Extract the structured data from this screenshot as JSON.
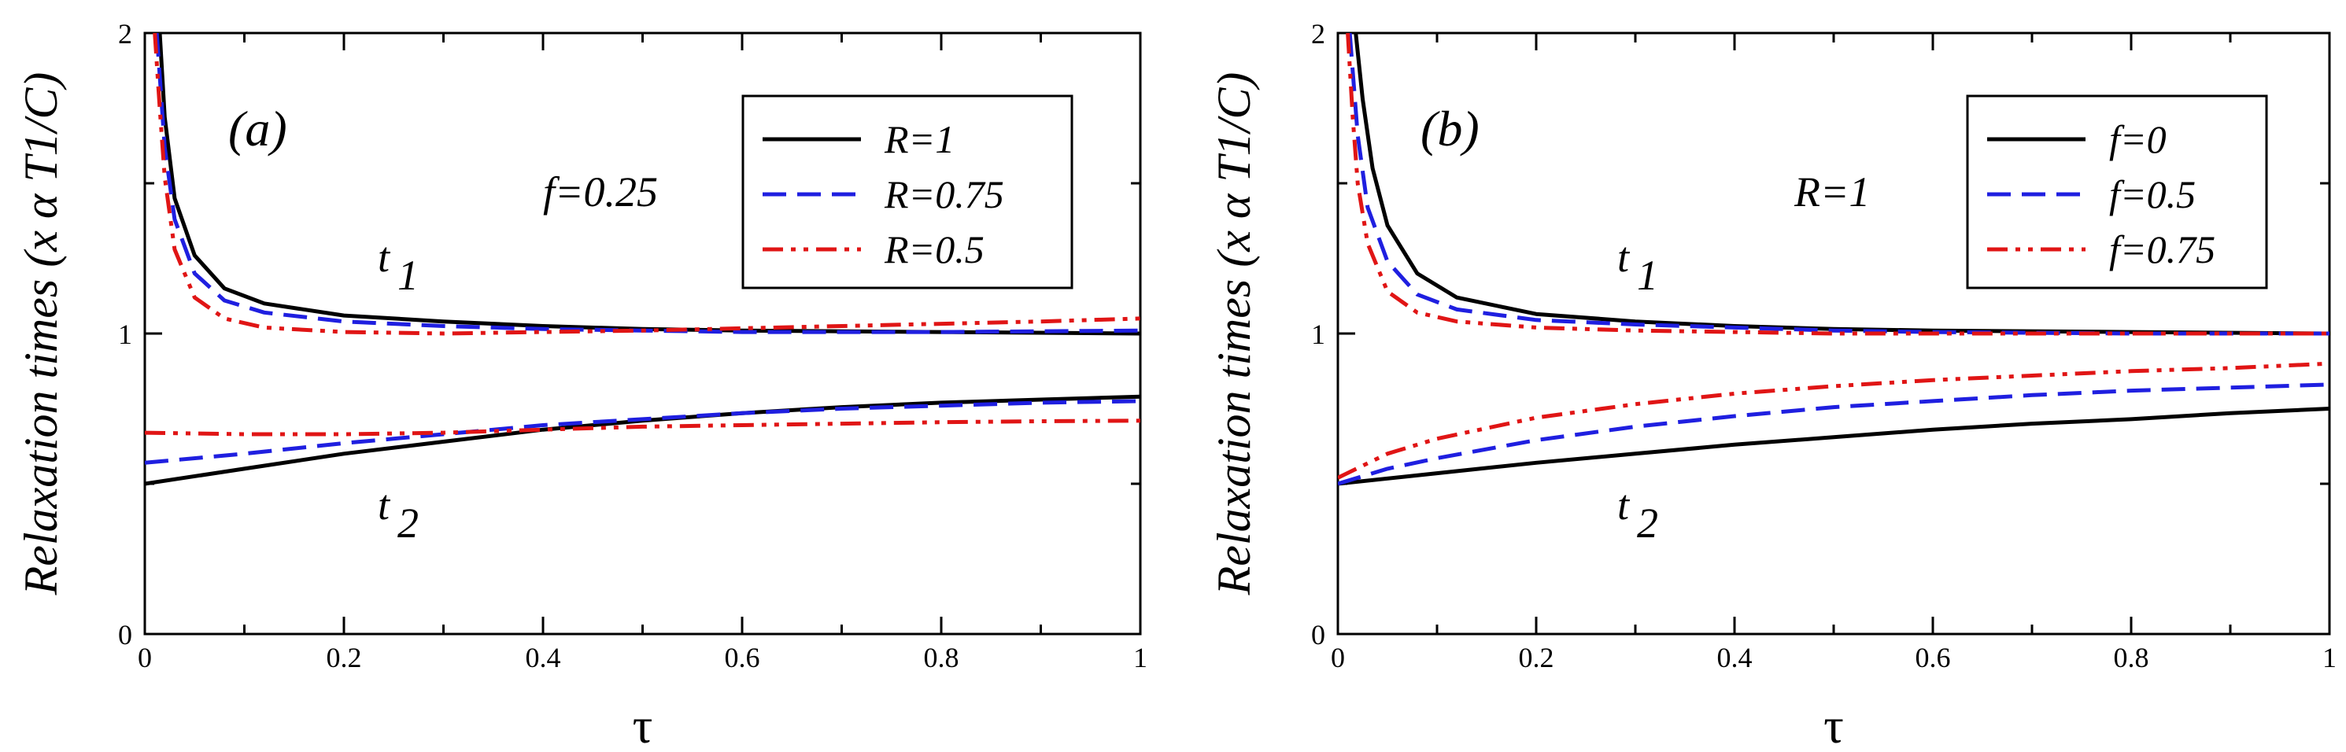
{
  "chart_data": [
    {
      "type": "line",
      "panel_label": "(a)",
      "xlabel": "τ",
      "ylabel": "Relaxation times (x α T1/C)",
      "xlim": [
        0,
        1
      ],
      "ylim": [
        0,
        2
      ],
      "xticks": [
        "0",
        "0.2",
        "0.4",
        "0.6",
        "0.8",
        "1"
      ],
      "yticks": [
        "0",
        "1",
        "2"
      ],
      "annotations": [
        "f=0.25",
        "t",
        "1",
        "t",
        "2"
      ],
      "legend_position": "top-right",
      "colors": {
        "s1": "#000000",
        "s2": "#1f1fe0",
        "s3": "#e01515"
      },
      "series": [
        {
          "name": "R=1",
          "style": "solid",
          "color": "#000000",
          "t1": {
            "x": [
              0.015,
              0.02,
              0.03,
              0.05,
              0.08,
              0.12,
              0.2,
              0.3,
              0.4,
              0.5,
              0.6,
              0.8,
              1.0
            ],
            "y": [
              2.0,
              1.72,
              1.45,
              1.26,
              1.15,
              1.1,
              1.06,
              1.04,
              1.025,
              1.015,
              1.01,
              1.005,
              1.0
            ]
          },
          "t2": {
            "x": [
              0.0,
              0.1,
              0.2,
              0.3,
              0.4,
              0.5,
              0.6,
              0.7,
              0.8,
              0.9,
              1.0
            ],
            "y": [
              0.5,
              0.55,
              0.6,
              0.64,
              0.68,
              0.71,
              0.735,
              0.755,
              0.77,
              0.78,
              0.79
            ]
          }
        },
        {
          "name": "R=0.75",
          "style": "dashed",
          "color": "#1f1fe0",
          "t1": {
            "x": [
              0.012,
              0.02,
              0.03,
              0.05,
              0.08,
              0.12,
              0.2,
              0.3,
              0.4,
              0.5,
              0.6,
              0.8,
              1.0
            ],
            "y": [
              2.0,
              1.62,
              1.38,
              1.2,
              1.11,
              1.07,
              1.04,
              1.025,
              1.015,
              1.01,
              1.005,
              1.005,
              1.01
            ]
          },
          "t2": {
            "x": [
              0.0,
              0.1,
              0.2,
              0.3,
              0.4,
              0.5,
              0.6,
              0.7,
              0.8,
              0.9,
              1.0
            ],
            "y": [
              0.57,
              0.6,
              0.635,
              0.665,
              0.695,
              0.715,
              0.735,
              0.75,
              0.76,
              0.77,
              0.775
            ]
          }
        },
        {
          "name": "R=0.5",
          "style": "dashdot",
          "color": "#e01515",
          "t1": {
            "x": [
              0.01,
              0.015,
              0.02,
              0.03,
              0.05,
              0.08,
              0.12,
              0.2,
              0.3,
              0.5,
              0.7,
              0.9,
              1.0
            ],
            "y": [
              2.0,
              1.75,
              1.52,
              1.28,
              1.12,
              1.05,
              1.02,
              1.005,
              1.0,
              1.01,
              1.025,
              1.04,
              1.05
            ]
          },
          "t2": {
            "x": [
              0.0,
              0.1,
              0.2,
              0.3,
              0.4,
              0.5,
              0.6,
              0.7,
              0.8,
              0.9,
              1.0
            ],
            "y": [
              0.67,
              0.665,
              0.665,
              0.67,
              0.68,
              0.69,
              0.695,
              0.7,
              0.705,
              0.708,
              0.71
            ]
          }
        }
      ]
    },
    {
      "type": "line",
      "panel_label": "(b)",
      "xlabel": "τ",
      "ylabel": "Relaxation times (x α T1/C)",
      "xlim": [
        0,
        1
      ],
      "ylim": [
        0,
        2
      ],
      "xticks": [
        "0",
        "0.2",
        "0.4",
        "0.6",
        "0.8",
        "1"
      ],
      "yticks": [
        "0",
        "1",
        "2"
      ],
      "annotations": [
        "R=1",
        "t",
        "1",
        "t",
        "2"
      ],
      "legend_position": "top-right",
      "colors": {
        "s1": "#000000",
        "s2": "#1f1fe0",
        "s3": "#e01515"
      },
      "series": [
        {
          "name": "f=0",
          "style": "solid",
          "color": "#000000",
          "t1": {
            "x": [
              0.018,
              0.025,
              0.035,
              0.05,
              0.08,
              0.12,
              0.2,
              0.3,
              0.4,
              0.5,
              0.6,
              0.8,
              1.0
            ],
            "y": [
              2.0,
              1.78,
              1.55,
              1.36,
              1.2,
              1.12,
              1.065,
              1.04,
              1.025,
              1.015,
              1.01,
              1.005,
              1.0
            ]
          },
          "t2": {
            "x": [
              0.0,
              0.1,
              0.2,
              0.3,
              0.4,
              0.5,
              0.6,
              0.7,
              0.8,
              0.9,
              1.0
            ],
            "y": [
              0.5,
              0.535,
              0.57,
              0.6,
              0.63,
              0.655,
              0.68,
              0.7,
              0.715,
              0.735,
              0.75
            ]
          }
        },
        {
          "name": "f=0.5",
          "style": "dashed",
          "color": "#1f1fe0",
          "t1": {
            "x": [
              0.012,
              0.02,
              0.03,
              0.05,
              0.08,
              0.12,
              0.2,
              0.3,
              0.4,
              0.5,
              0.6,
              0.8,
              1.0
            ],
            "y": [
              2.0,
              1.66,
              1.42,
              1.24,
              1.13,
              1.08,
              1.045,
              1.03,
              1.02,
              1.01,
              1.005,
              1.0,
              1.0
            ]
          },
          "t2": {
            "x": [
              0.0,
              0.05,
              0.1,
              0.2,
              0.3,
              0.4,
              0.5,
              0.6,
              0.7,
              0.8,
              0.9,
              1.0
            ],
            "y": [
              0.5,
              0.55,
              0.585,
              0.645,
              0.69,
              0.725,
              0.755,
              0.775,
              0.795,
              0.81,
              0.82,
              0.83
            ]
          }
        },
        {
          "name": "f=0.75",
          "style": "dashdot",
          "color": "#e01515",
          "t1": {
            "x": [
              0.01,
              0.015,
              0.02,
              0.03,
              0.05,
              0.08,
              0.12,
              0.2,
              0.3,
              0.4,
              0.5,
              0.7,
              1.0
            ],
            "y": [
              2.0,
              1.72,
              1.5,
              1.3,
              1.14,
              1.07,
              1.04,
              1.02,
              1.01,
              1.005,
              1.0,
              1.0,
              1.0
            ]
          },
          "t2": {
            "x": [
              0.0,
              0.05,
              0.1,
              0.2,
              0.3,
              0.4,
              0.5,
              0.6,
              0.7,
              0.8,
              0.9,
              1.0
            ],
            "y": [
              0.52,
              0.6,
              0.65,
              0.72,
              0.765,
              0.8,
              0.825,
              0.845,
              0.86,
              0.875,
              0.885,
              0.9
            ]
          }
        }
      ]
    }
  ]
}
